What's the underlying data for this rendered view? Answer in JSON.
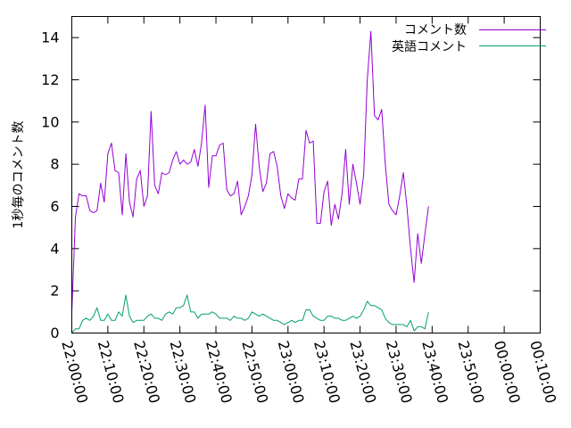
{
  "chart_data": {
    "type": "line",
    "title": "",
    "xlabel": "",
    "ylabel": "1秒毎のコメント数",
    "x_start": "22:00:00",
    "x_step": "1 minute",
    "xlim": [
      "22:00:00",
      "00:10:00"
    ],
    "ylim": [
      0,
      15
    ],
    "yticks": [
      0,
      2,
      4,
      6,
      8,
      10,
      12,
      14
    ],
    "xticks": [
      "22:00:00",
      "22:10:00",
      "22:20:00",
      "22:30:00",
      "22:40:00",
      "22:50:00",
      "23:00:00",
      "23:10:00",
      "23:20:00",
      "23:30:00",
      "23:40:00",
      "23:50:00",
      "00:00:00",
      "00:10:00"
    ],
    "legend_position": "top-right",
    "grid": false,
    "series": [
      {
        "name": "コメント数",
        "color": "#9400d3",
        "values": [
          1.0,
          5.5,
          6.6,
          6.5,
          6.5,
          5.8,
          5.7,
          5.8,
          7.1,
          6.2,
          8.5,
          9.0,
          7.7,
          7.6,
          5.6,
          8.5,
          6.2,
          5.5,
          7.3,
          7.7,
          6.0,
          6.5,
          10.5,
          7.0,
          6.6,
          7.6,
          7.5,
          7.6,
          8.2,
          8.6,
          8.0,
          8.2,
          8.0,
          8.1,
          8.7,
          7.9,
          9.0,
          10.8,
          6.9,
          8.4,
          8.4,
          8.9,
          9.0,
          6.8,
          6.5,
          6.6,
          7.2,
          5.6,
          6.0,
          6.5,
          7.5,
          9.9,
          7.9,
          6.7,
          7.1,
          8.5,
          8.6,
          7.9,
          6.5,
          5.9,
          6.6,
          6.4,
          6.3,
          7.3,
          7.3,
          9.6,
          9.0,
          9.1,
          5.2,
          5.2,
          6.7,
          7.2,
          5.1,
          6.1,
          5.4,
          6.6,
          8.7,
          6.1,
          8.0,
          7.1,
          6.1,
          7.5,
          12.0,
          14.3,
          10.3,
          10.1,
          10.6,
          8.0,
          6.1,
          5.8,
          5.6,
          6.5,
          7.6,
          6.0,
          4.0,
          2.4,
          4.7,
          3.3,
          4.7,
          6.0
        ]
      },
      {
        "name": "英語コメント",
        "color": "#009e73",
        "values": [
          0.0,
          0.2,
          0.2,
          0.6,
          0.7,
          0.6,
          0.8,
          1.2,
          0.6,
          0.6,
          0.9,
          0.6,
          0.6,
          1.0,
          0.8,
          1.8,
          0.8,
          0.5,
          0.6,
          0.6,
          0.6,
          0.8,
          0.9,
          0.7,
          0.7,
          0.6,
          0.9,
          1.0,
          0.9,
          1.2,
          1.2,
          1.3,
          1.8,
          1.0,
          1.0,
          0.7,
          0.9,
          0.9,
          0.9,
          1.0,
          0.9,
          0.7,
          0.7,
          0.7,
          0.6,
          0.8,
          0.7,
          0.7,
          0.6,
          0.7,
          1.0,
          0.9,
          0.8,
          0.9,
          0.8,
          0.7,
          0.6,
          0.6,
          0.5,
          0.4,
          0.5,
          0.6,
          0.5,
          0.6,
          0.6,
          1.1,
          1.1,
          0.8,
          0.7,
          0.6,
          0.6,
          0.8,
          0.8,
          0.7,
          0.7,
          0.6,
          0.6,
          0.7,
          0.8,
          0.7,
          0.8,
          1.1,
          1.5,
          1.3,
          1.3,
          1.2,
          1.1,
          0.7,
          0.5,
          0.4,
          0.4,
          0.4,
          0.4,
          0.3,
          0.6,
          0.1,
          0.3,
          0.3,
          0.2,
          1.0
        ]
      }
    ]
  }
}
